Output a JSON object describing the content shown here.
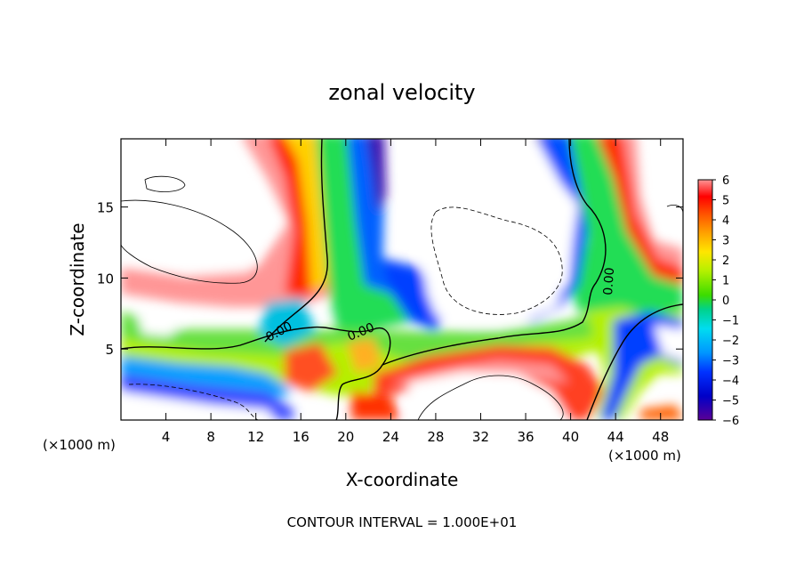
{
  "chart_data": {
    "type": "heatmap",
    "title": "zonal velocity",
    "xlabel": "X-coordinate",
    "ylabel": "Z-coordinate",
    "x_unit": "(×1000 m)",
    "z_unit": "(×1000 m)",
    "xlim": [
      0,
      50
    ],
    "ylim": [
      0,
      19.8
    ],
    "x_ticks": [
      "4",
      "8",
      "12",
      "16",
      "20",
      "24",
      "28",
      "32",
      "36",
      "40",
      "44",
      "48"
    ],
    "y_ticks": [
      "5",
      "10",
      "15"
    ],
    "footer": "CONTOUR INTERVAL = 1.000E+01",
    "colorbar": {
      "min": -6,
      "max": 6,
      "ticks": [
        "6",
        "5",
        "4",
        "3",
        "2",
        "1",
        "0",
        "−1",
        "−2",
        "−3",
        "−4",
        "−5",
        "−6"
      ]
    },
    "contour_labels": [
      "0.00",
      "0.00",
      "0.00"
    ],
    "colors": {
      "neg6": "#5a0096",
      "neg5": "#0000c8",
      "neg4": "#0032ff",
      "neg3": "#0096ff",
      "neg2": "#00dcf0",
      "neg1": "#00d28c",
      "zero": "#3cdc00",
      "pos1": "#b4f000",
      "pos2": "#ffe600",
      "pos3": "#ffa000",
      "pos4": "#ff5000",
      "pos5": "#ff0000",
      "pos6": "#ff9696"
    }
  }
}
